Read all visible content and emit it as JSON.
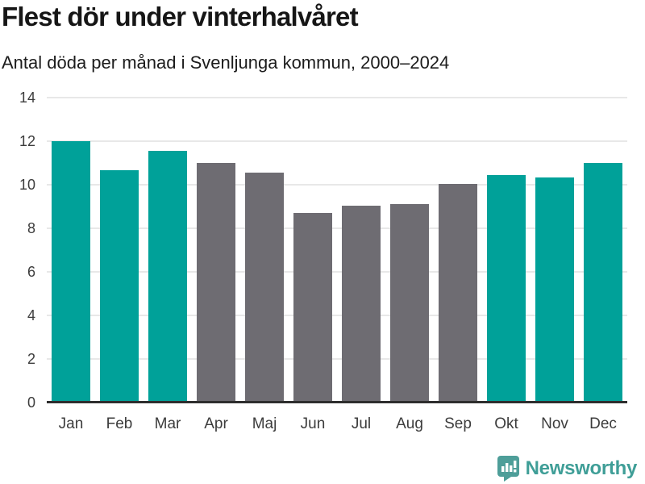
{
  "header": {
    "title": "Flest dör under vinterhalvåret",
    "subtitle": "Antal döda per månad i Svenljunga kommun, 2000–2024"
  },
  "chart_data": {
    "type": "bar",
    "title": "Flest dör under vinterhalvåret",
    "subtitle": "Antal döda per månad i Svenljunga kommun, 2000–2024",
    "categories": [
      "Jan",
      "Feb",
      "Mar",
      "Apr",
      "Maj",
      "Jun",
      "Jul",
      "Aug",
      "Sep",
      "Okt",
      "Nov",
      "Dec"
    ],
    "values": [
      12.0,
      10.65,
      11.55,
      11.0,
      10.55,
      8.7,
      9.05,
      9.1,
      10.05,
      10.45,
      10.35,
      11.0
    ],
    "highlighted_categories": [
      "Jan",
      "Feb",
      "Mar",
      "Okt",
      "Nov",
      "Dec"
    ],
    "xlabel": "",
    "ylabel": "",
    "ylim": [
      0,
      14
    ],
    "yticks": [
      0,
      2,
      4,
      6,
      8,
      10,
      12,
      14
    ],
    "grid": true,
    "legend": false,
    "colors": {
      "highlight": "#00a199",
      "default": "#6e6c72",
      "gridline": "#e8e8e8",
      "axis_line": "#2e2e2e",
      "tick_text": "#3c3c3c"
    }
  },
  "footer": {
    "brand": "Newsworthy",
    "brand_color": "#3f9e97",
    "logo_icon": "bar-chart-speech-bubble-icon",
    "logo_icon_color": "#4e9e99"
  }
}
